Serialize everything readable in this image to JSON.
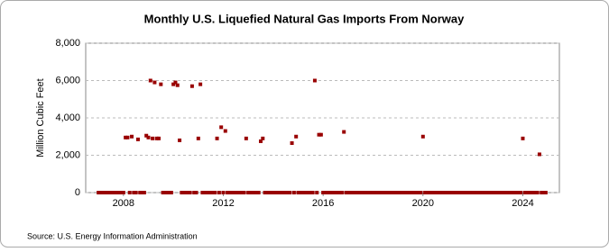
{
  "chart_data": {
    "type": "scatter",
    "title": "Monthly U.S. Liquefied Natural Gas Imports From Norway",
    "y_label": "Million Cubic Feet",
    "source": "Source: U.S. Energy Information Administration",
    "color": "#990000",
    "categories": [
      null,
      null,
      null,
      null,
      null,
      null,
      null,
      null,
      null,
      null,
      null,
      null,
      "2008",
      null,
      null,
      null,
      null,
      null,
      null,
      null,
      null,
      null,
      null,
      null,
      null,
      null,
      null,
      null,
      null,
      null,
      null,
      null,
      null,
      null,
      null,
      null,
      null,
      null,
      null,
      null,
      null,
      null,
      null,
      null,
      null,
      null,
      null,
      null,
      null,
      null,
      null,
      null,
      null,
      null,
      null,
      null,
      null,
      null,
      null,
      null,
      "2012",
      null,
      null,
      null,
      null,
      null,
      null,
      null,
      null,
      null,
      null,
      null,
      null,
      null,
      null,
      null,
      null,
      null,
      null,
      null,
      null,
      null,
      null,
      null,
      null,
      null,
      null,
      null,
      null,
      null,
      null,
      null,
      null,
      null,
      null,
      null,
      null,
      null,
      null,
      null,
      null,
      null,
      null,
      null,
      null,
      null,
      null,
      null,
      "2016",
      null,
      null,
      null,
      null,
      null,
      null,
      null,
      null,
      null,
      null,
      null,
      null,
      null,
      null,
      null,
      null,
      null,
      null,
      null,
      null,
      null,
      null,
      null,
      null,
      null,
      null,
      null,
      null,
      null,
      null,
      null,
      null,
      null,
      null,
      null,
      null,
      null,
      null,
      null,
      null,
      null,
      null,
      null,
      null,
      null,
      null,
      null,
      "2020",
      null,
      null,
      null,
      null,
      null,
      null,
      null,
      null,
      null,
      null,
      null,
      null,
      null,
      null,
      null,
      null,
      null,
      null,
      null,
      null,
      null,
      null,
      null,
      null,
      null,
      null,
      null,
      null,
      null,
      null,
      null,
      null,
      null,
      null,
      null,
      null,
      null,
      null,
      null,
      null,
      null,
      null,
      null,
      null,
      null,
      null,
      null,
      "2024",
      null,
      null,
      null,
      null,
      null,
      null,
      null,
      null,
      null,
      null,
      null
    ],
    "values": [
      0,
      0,
      0,
      0,
      0,
      0,
      0,
      0,
      0,
      0,
      0,
      0,
      0,
      2950,
      2950,
      0,
      3000,
      0,
      0,
      2850,
      0,
      0,
      0,
      3050,
      2950,
      6000,
      2900,
      5900,
      2900,
      2900,
      5800,
      0,
      0,
      0,
      0,
      0,
      5800,
      5900,
      5750,
      2800,
      0,
      0,
      0,
      0,
      0,
      5700,
      0,
      0,
      2900,
      5800,
      0,
      0,
      0,
      0,
      0,
      0,
      0,
      2900,
      0,
      3500,
      0,
      3300,
      0,
      0,
      0,
      0,
      0,
      0,
      0,
      0,
      0,
      2900,
      0,
      0,
      0,
      0,
      0,
      0,
      2750,
      2900,
      0,
      0,
      0,
      0,
      0,
      0,
      0,
      0,
      0,
      0,
      0,
      0,
      0,
      2650,
      0,
      3000,
      0,
      0,
      0,
      0,
      0,
      0,
      0,
      0,
      6000,
      0,
      3100,
      3100,
      0,
      0,
      0,
      0,
      0,
      0,
      0,
      0,
      0,
      0,
      3250,
      0,
      0,
      0,
      0,
      0,
      0,
      0,
      0,
      0,
      0,
      0,
      0,
      0,
      0,
      0,
      0,
      0,
      0,
      0,
      0,
      0,
      0,
      0,
      0,
      0,
      0,
      0,
      0,
      0,
      0,
      0,
      0,
      0,
      0,
      0,
      0,
      0,
      3000,
      0,
      0,
      0,
      0,
      0,
      0,
      0,
      0,
      0,
      0,
      0,
      0,
      0,
      0,
      0,
      0,
      0,
      0,
      0,
      0,
      0,
      0,
      0,
      0,
      0,
      0,
      0,
      0,
      0,
      0,
      0,
      0,
      0,
      0,
      0,
      0,
      0,
      0,
      0,
      0,
      0,
      0,
      0,
      0,
      0,
      0,
      0,
      2900,
      0,
      0,
      0,
      0,
      0,
      0,
      0,
      2050,
      0,
      0,
      0
    ],
    "ylim": [
      0,
      8000
    ],
    "yticks": [
      0,
      {
        "value": 2000,
        "label": "2,000"
      },
      {
        "value": 4000,
        "label": "4,000"
      },
      {
        "value": 6000,
        "label": "6,000"
      },
      {
        "value": 8000,
        "label": "8,000"
      }
    ],
    "grid": true
  }
}
